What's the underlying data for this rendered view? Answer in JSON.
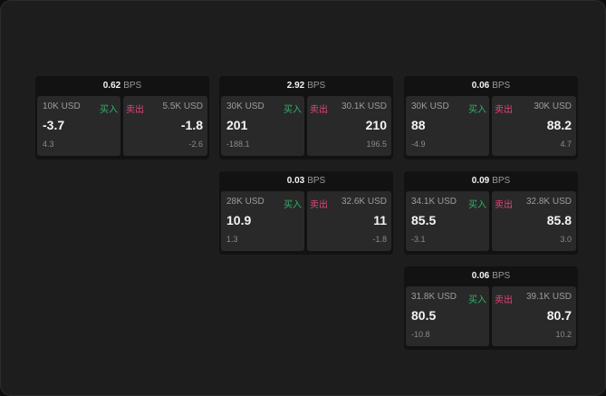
{
  "labels": {
    "bps": "BPS",
    "buy": "买入",
    "sell": "卖出"
  },
  "colors": {
    "buy": "#2fb36a",
    "sell": "#e0457a"
  },
  "cards": [
    {
      "bps": "0.62",
      "buy": {
        "amount": "10K USD",
        "price": "-3.7",
        "change": "4.3"
      },
      "sell": {
        "amount": "5.5K USD",
        "price": "-1.8",
        "change": "-2.6"
      }
    },
    {
      "bps": "2.92",
      "buy": {
        "amount": "30K USD",
        "price": "201",
        "change": "-188.1"
      },
      "sell": {
        "amount": "30.1K USD",
        "price": "210",
        "change": "196.5"
      }
    },
    {
      "bps": "0.06",
      "buy": {
        "amount": "30K USD",
        "price": "88",
        "change": "-4.9"
      },
      "sell": {
        "amount": "30K USD",
        "price": "88.2",
        "change": "4.7"
      }
    },
    {
      "bps": "0.03",
      "buy": {
        "amount": "28K USD",
        "price": "10.9",
        "change": "1.3"
      },
      "sell": {
        "amount": "32.6K USD",
        "price": "11",
        "change": "-1.8"
      }
    },
    {
      "bps": "0.09",
      "buy": {
        "amount": "34.1K USD",
        "price": "85.5",
        "change": "-3.1"
      },
      "sell": {
        "amount": "32.8K USD",
        "price": "85.8",
        "change": "3.0"
      }
    },
    {
      "bps": "0.06",
      "buy": {
        "amount": "31.8K USD",
        "price": "80.5",
        "change": "-10.8"
      },
      "sell": {
        "amount": "39.1K USD",
        "price": "80.7",
        "change": "10.2"
      }
    }
  ]
}
